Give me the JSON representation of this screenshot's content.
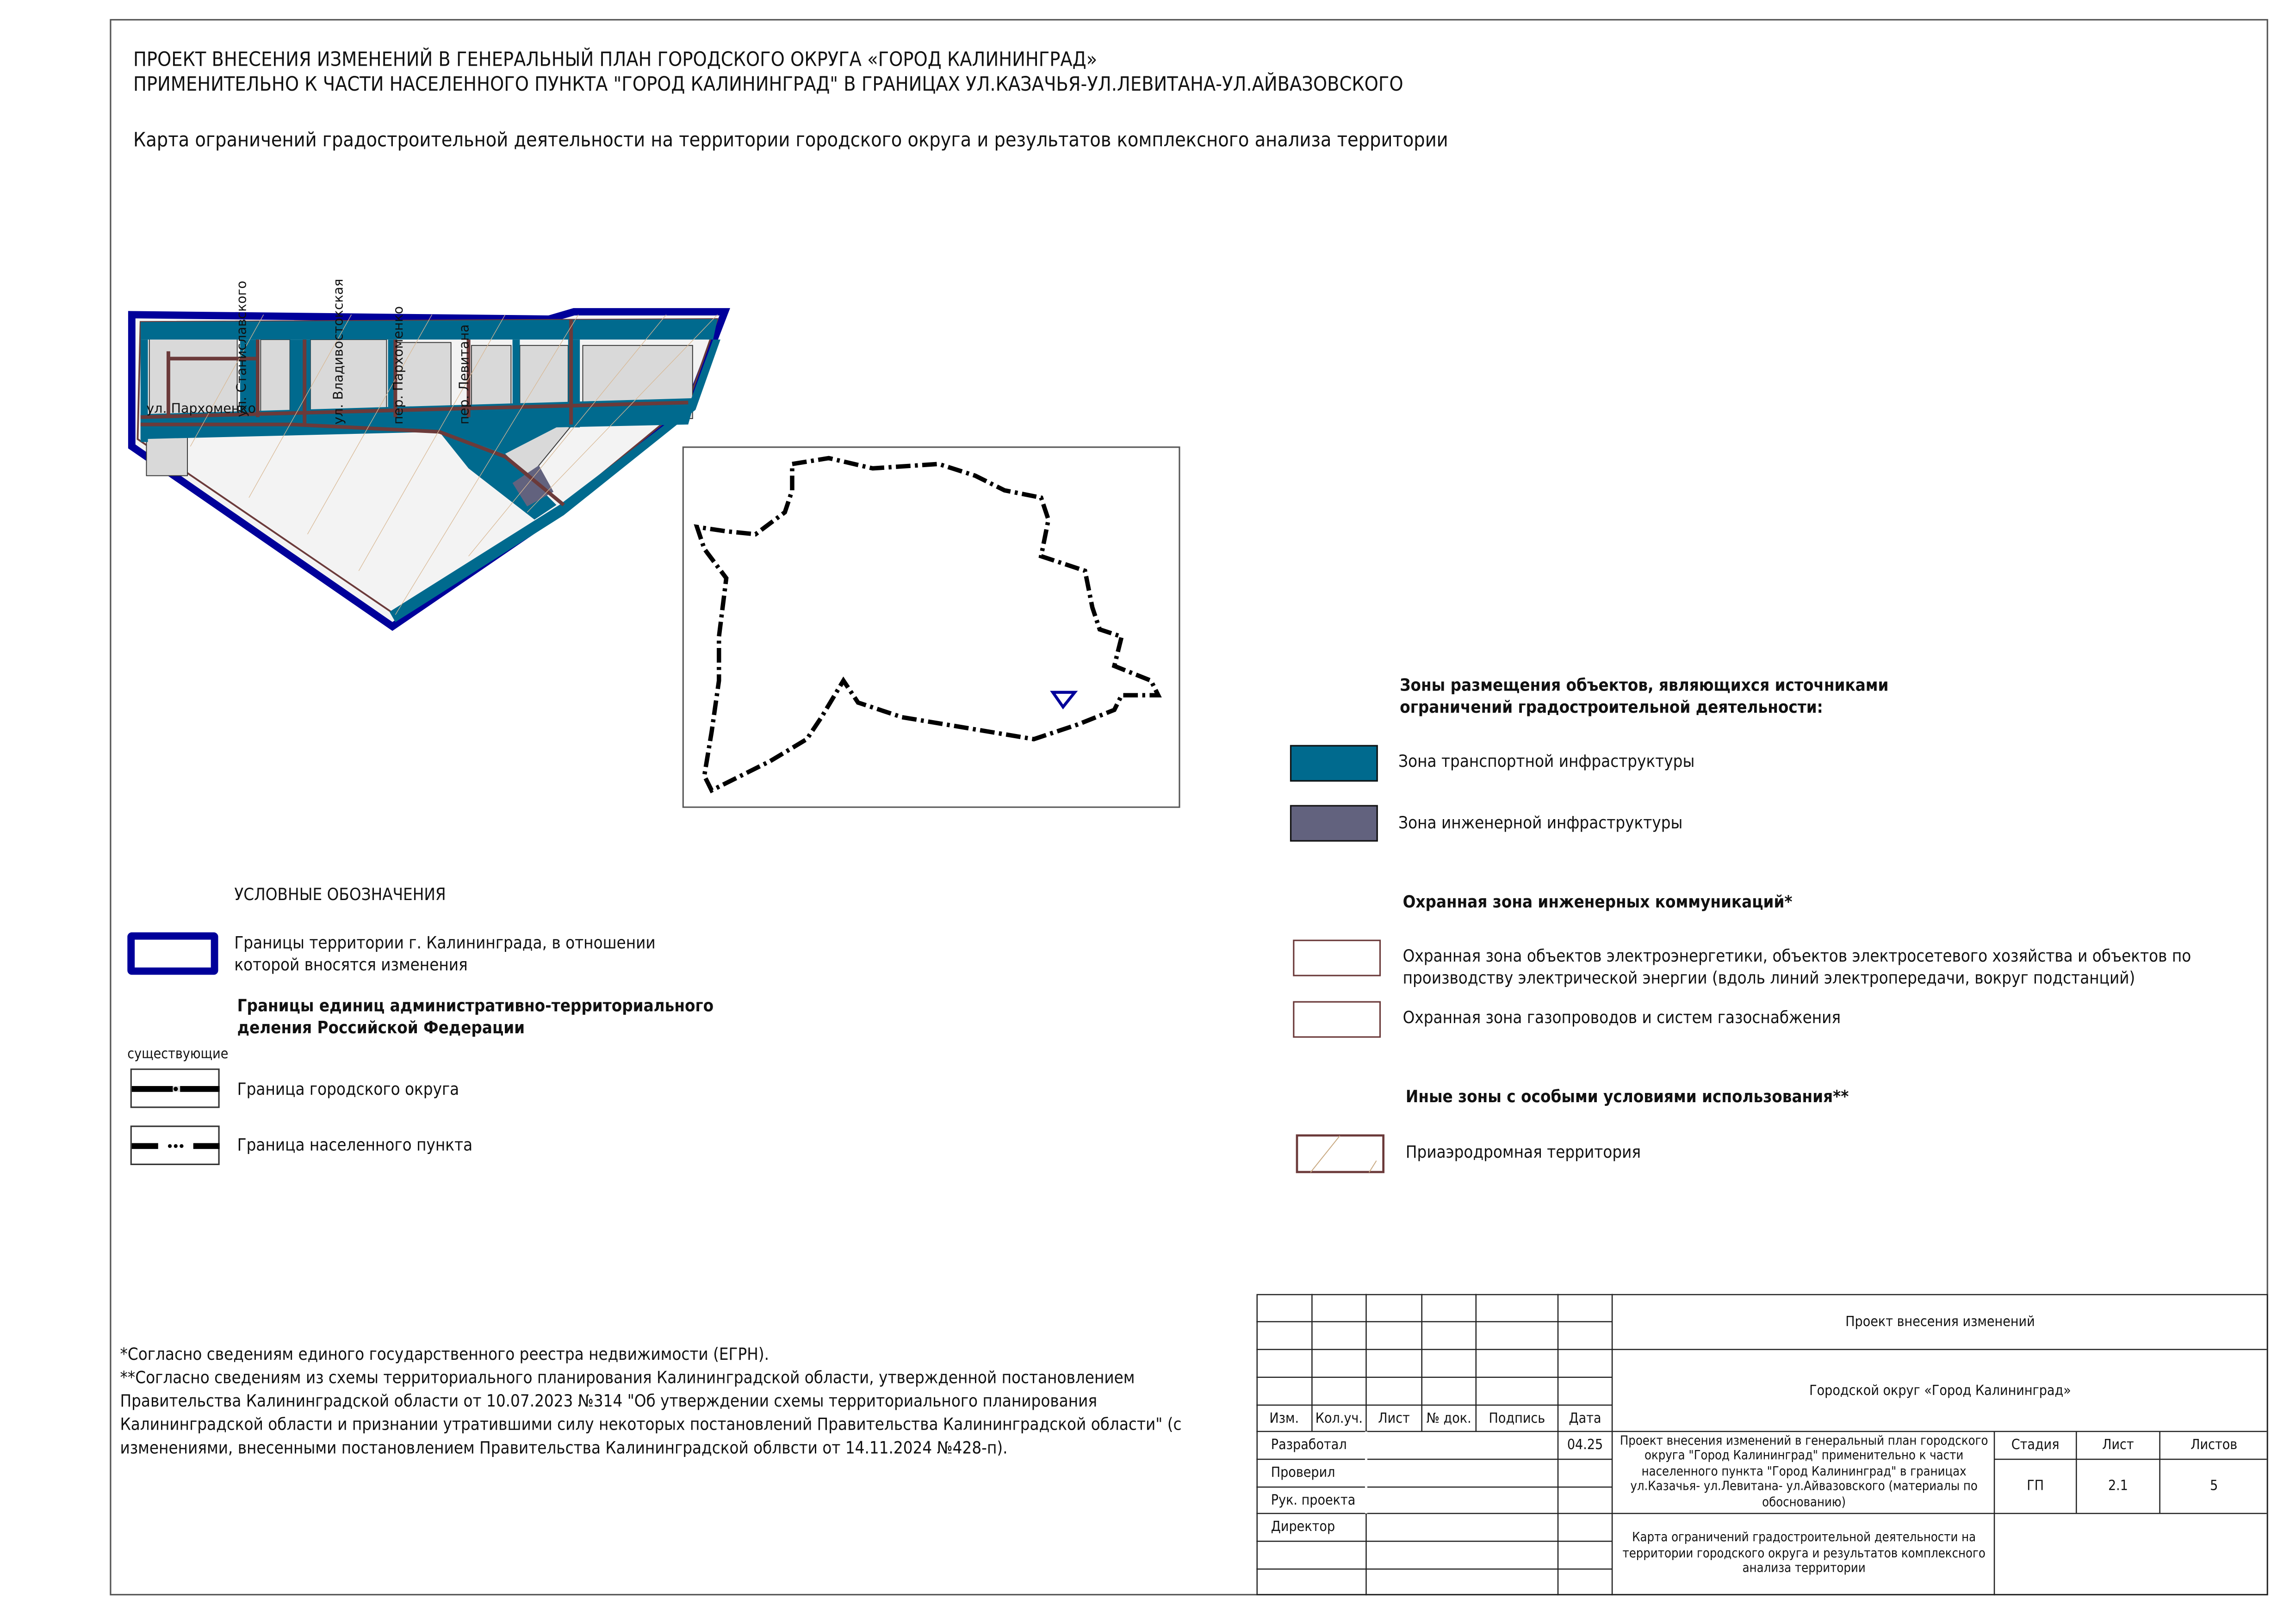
{
  "header": {
    "title_line1": "ПРОЕКТ ВНЕСЕНИЯ ИЗМЕНЕНИЙ В ГЕНЕРАЛЬНЫЙ ПЛАН ГОРОДСКОГО ОКРУГА «ГОРОД КАЛИНИНГРАД»",
    "title_line2": "ПРИМЕНИТЕЛЬНО К ЧАСТИ НАСЕЛЕННОГО ПУНКТА \"ГОРОД КАЛИНИНГРАД\" В ГРАНИЦАХ УЛ.КАЗАЧЬЯ-УЛ.ЛЕВИТАНА-УЛ.АЙВАЗОВСКОГО",
    "subtitle": "Карта ограничений градостроительной деятельности на территории городского округа и результатов комплексного анализа территории"
  },
  "map": {
    "streets": [
      "ул. Пархоменко",
      "ул. Станиславского",
      "ул. Владивостокская",
      "пер. Пархоменко",
      "пер. Левитана"
    ],
    "colors": {
      "boundary": "#00009a",
      "transport": "#006a8e",
      "engineering": "#62627e",
      "protection": "#6b3a3a",
      "block": "#d9d9d9",
      "water": "#1fa3d0"
    }
  },
  "legend_left": {
    "title": "УСЛОВНЫЕ ОБОЗНАЧЕНИЯ",
    "boundary_item": "Границы территории г. Калининграда, в отношении которой вносятся изменения",
    "admin_heading": "Границы единиц административно-территориального деления Российской Федерации",
    "existing": "существующие",
    "city_district": "Граница городского округа",
    "settlement": "Граница населенного пункта"
  },
  "legend_right": {
    "zones_heading": "Зоны размещения объектов, являющихся источниками ограничений градостроительной деятельности:",
    "transport": "Зона транспортной инфраструктуры",
    "engineering": "Зона инженерной инфраструктуры",
    "protect_heading": "Охранная зона инженерных коммуникаций*",
    "power": "Охранная зона объектов электроэнергетики, объектов электросетевого хозяйства и объектов по производству электрической энергии (вдоль линий электропередачи, вокруг подстанций)",
    "gas": "Охранная зона газопроводов и систем газоснабжения",
    "other_heading": "Иные зоны с особыми условиями использования**",
    "airfield": "Приаэродромная территория"
  },
  "footnotes": [
    "*Согласно сведениям единого государственного реестра недвижимости (ЕГРН).",
    "**Согласно сведениям из схемы территориального планирования Калининградской области, утвержденной постановлением Правительства Калининградской области от 10.07.2023 №314 \"Об утверждении схемы территориального планирования Калининградской области и признании утратившими силу некоторых постановлений Правительства Калининградской области\" (с изменениями, внесенными постановлением Правительства Калининградской облвсти от 14.11.2024 №428-п)."
  ],
  "title_block": {
    "headers": [
      "Изм.",
      "Кол.уч.",
      "Лист",
      "№ док.",
      "Подпись",
      "Дата"
    ],
    "roles": [
      "Разработал",
      "Проверил",
      "Рук. проекта",
      "Директор"
    ],
    "date": "04.25",
    "project": "Проект внесения изменений",
    "district": "Городской округ «Город Калининград»",
    "description": "Проект внесения изменений в генеральный план городского округа \"Город Калининград\" применительно к части населенного пункта \"Город Калининград\" в границах ул.Казачья- ул.Левитана- ул.Айвазовского (материалы по обоснованию)",
    "sheet_title": "Карта ограничений градостроительной деятельности на территории городского округа и результатов комплексного анализа территории",
    "stage_label": "Стадия",
    "sheet_label": "Лист",
    "sheets_label": "Листов",
    "stage": "ГП",
    "sheet": "2.1",
    "sheets": "5"
  }
}
